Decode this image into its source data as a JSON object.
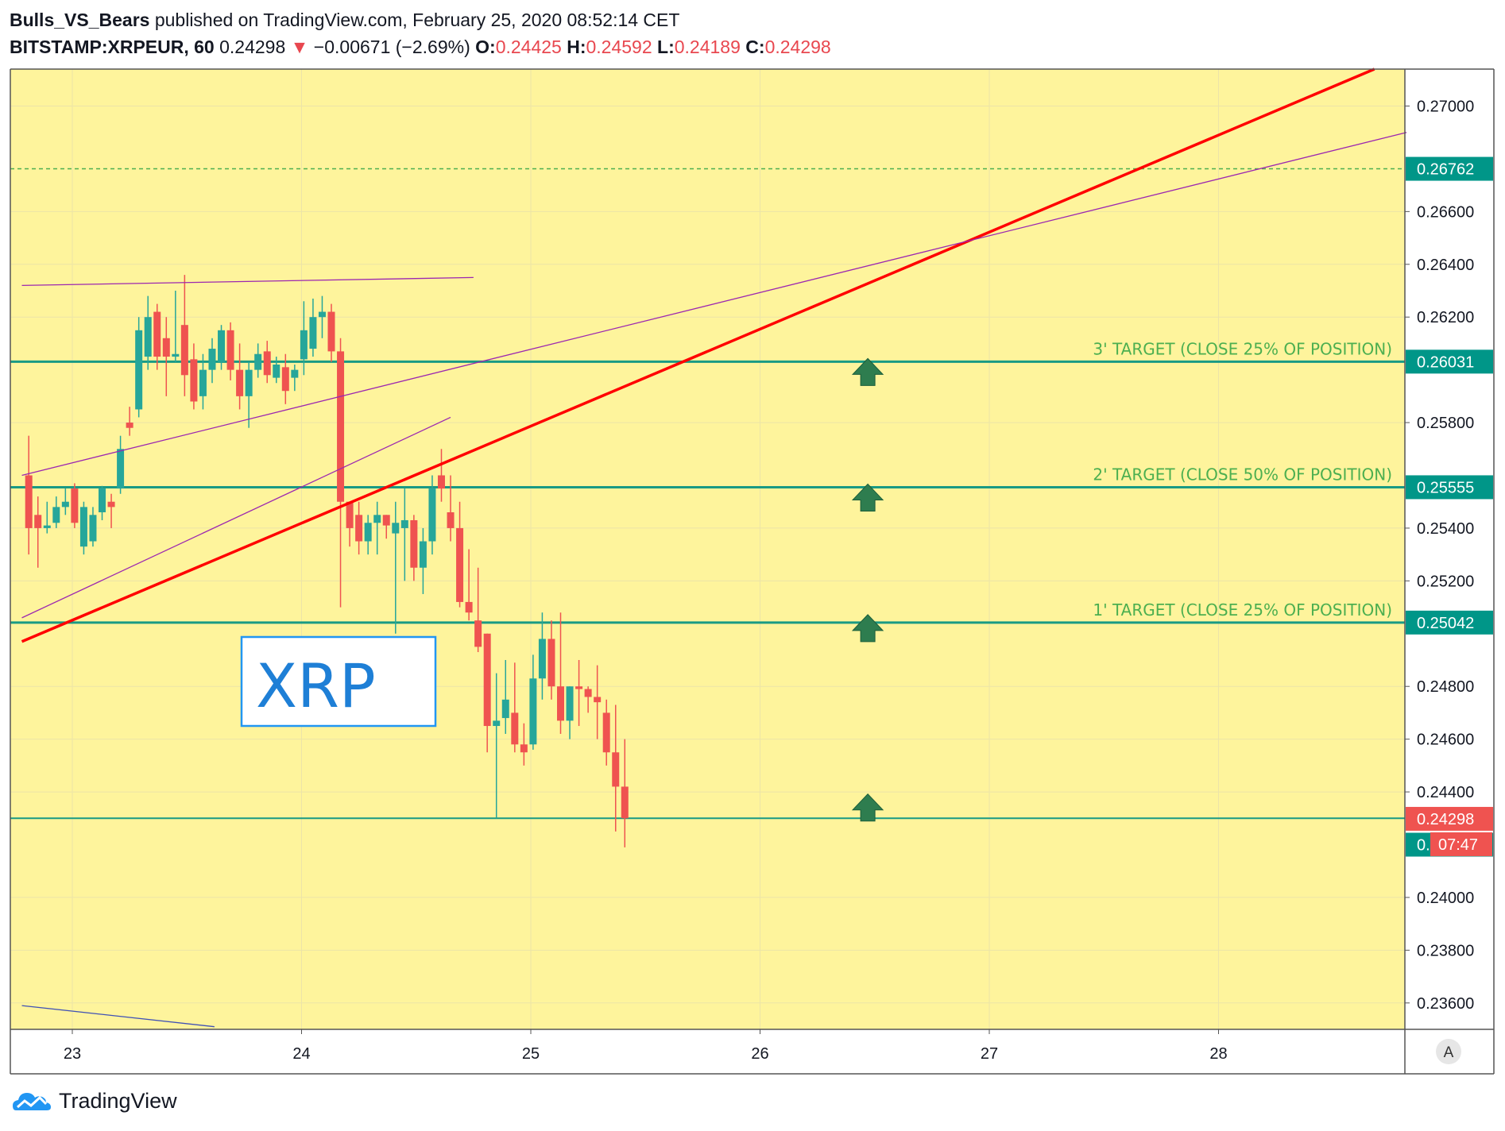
{
  "header": {
    "author": "Bulls_VS_Bears",
    "published": "published on TradingView.com, February 25, 2020 08:52:14 CET",
    "symbol": "BITSTAMP:XRPEUR, 60",
    "last": "0.24298",
    "change": "−0.00671 (−2.69%)",
    "open_label": "O:",
    "open": "0.24425",
    "high_label": "H:",
    "high": "0.24592",
    "low_label": "L:",
    "low": "0.24189",
    "close_label": "C:",
    "close": "0.24298"
  },
  "footer": {
    "brand": "TradingView"
  },
  "colors": {
    "background": "#fef49c",
    "up": "#26a69a",
    "down": "#ef5350",
    "target_line": "#199a84",
    "trend_red": "#ff0000",
    "trend_violet": "#9c27b0",
    "arrow": "#2e7d4f",
    "label_text": "#4caf50"
  },
  "chart_data": {
    "type": "candlestick",
    "x_ticks": [
      "23",
      "24",
      "25",
      "26",
      "27",
      "28"
    ],
    "y_ticks": [
      "0.27000",
      "0.26600",
      "0.26400",
      "0.26200",
      "0.25800",
      "0.25400",
      "0.25200",
      "0.24800",
      "0.24600",
      "0.24400",
      "0.24000",
      "0.23800",
      "0.23600"
    ],
    "ylim": [
      0.235,
      0.2714
    ],
    "candles": [
      {
        "t": 22.81,
        "o": 0.256,
        "h": 0.2575,
        "l": 0.253,
        "c": 0.254
      },
      {
        "t": 22.85,
        "o": 0.2545,
        "h": 0.2552,
        "l": 0.2525,
        "c": 0.254
      },
      {
        "t": 22.89,
        "o": 0.254,
        "h": 0.255,
        "l": 0.2538,
        "c": 0.2541
      },
      {
        "t": 22.93,
        "o": 0.2542,
        "h": 0.2552,
        "l": 0.254,
        "c": 0.2548
      },
      {
        "t": 22.97,
        "o": 0.2548,
        "h": 0.2555,
        "l": 0.2545,
        "c": 0.255
      },
      {
        "t": 23.01,
        "o": 0.2555,
        "h": 0.2557,
        "l": 0.254,
        "c": 0.2542
      },
      {
        "t": 23.05,
        "o": 0.2533,
        "h": 0.255,
        "l": 0.253,
        "c": 0.2548
      },
      {
        "t": 23.09,
        "o": 0.2535,
        "h": 0.2548,
        "l": 0.2533,
        "c": 0.2545
      },
      {
        "t": 23.13,
        "o": 0.2546,
        "h": 0.2556,
        "l": 0.2543,
        "c": 0.2555
      },
      {
        "t": 23.17,
        "o": 0.255,
        "h": 0.2553,
        "l": 0.254,
        "c": 0.2548
      },
      {
        "t": 23.21,
        "o": 0.2555,
        "h": 0.2575,
        "l": 0.2553,
        "c": 0.257
      },
      {
        "t": 23.25,
        "o": 0.258,
        "h": 0.2586,
        "l": 0.2575,
        "c": 0.2578
      },
      {
        "t": 23.29,
        "o": 0.2585,
        "h": 0.262,
        "l": 0.2582,
        "c": 0.2615
      },
      {
        "t": 23.33,
        "o": 0.2605,
        "h": 0.2628,
        "l": 0.26,
        "c": 0.262
      },
      {
        "t": 23.37,
        "o": 0.2622,
        "h": 0.2625,
        "l": 0.26,
        "c": 0.2605
      },
      {
        "t": 23.41,
        "o": 0.2612,
        "h": 0.262,
        "l": 0.259,
        "c": 0.2605
      },
      {
        "t": 23.45,
        "o": 0.2605,
        "h": 0.263,
        "l": 0.2603,
        "c": 0.2606
      },
      {
        "t": 23.49,
        "o": 0.2617,
        "h": 0.2636,
        "l": 0.259,
        "c": 0.2598
      },
      {
        "t": 23.53,
        "o": 0.2604,
        "h": 0.261,
        "l": 0.2585,
        "c": 0.2588
      },
      {
        "t": 23.57,
        "o": 0.259,
        "h": 0.2606,
        "l": 0.2585,
        "c": 0.26
      },
      {
        "t": 23.61,
        "o": 0.26,
        "h": 0.2612,
        "l": 0.2595,
        "c": 0.2608
      },
      {
        "t": 23.65,
        "o": 0.2603,
        "h": 0.2617,
        "l": 0.26,
        "c": 0.2615
      },
      {
        "t": 23.69,
        "o": 0.2615,
        "h": 0.2618,
        "l": 0.2596,
        "c": 0.26
      },
      {
        "t": 23.73,
        "o": 0.26,
        "h": 0.261,
        "l": 0.2585,
        "c": 0.259
      },
      {
        "t": 23.77,
        "o": 0.259,
        "h": 0.2603,
        "l": 0.2578,
        "c": 0.26
      },
      {
        "t": 23.81,
        "o": 0.26,
        "h": 0.261,
        "l": 0.2597,
        "c": 0.2606
      },
      {
        "t": 23.85,
        "o": 0.2607,
        "h": 0.2611,
        "l": 0.2595,
        "c": 0.2598
      },
      {
        "t": 23.89,
        "o": 0.2597,
        "h": 0.2605,
        "l": 0.2595,
        "c": 0.2602
      },
      {
        "t": 23.93,
        "o": 0.2601,
        "h": 0.2606,
        "l": 0.2587,
        "c": 0.2592
      },
      {
        "t": 23.97,
        "o": 0.2597,
        "h": 0.2602,
        "l": 0.2592,
        "c": 0.26
      },
      {
        "t": 24.01,
        "o": 0.2604,
        "h": 0.2626,
        "l": 0.2598,
        "c": 0.2615
      },
      {
        "t": 24.05,
        "o": 0.2608,
        "h": 0.2627,
        "l": 0.2605,
        "c": 0.262
      },
      {
        "t": 24.09,
        "o": 0.262,
        "h": 0.2628,
        "l": 0.2612,
        "c": 0.2622
      },
      {
        "t": 24.13,
        "o": 0.2622,
        "h": 0.2625,
        "l": 0.2603,
        "c": 0.2607
      },
      {
        "t": 24.17,
        "o": 0.2607,
        "h": 0.2612,
        "l": 0.251,
        "c": 0.255
      },
      {
        "t": 24.21,
        "o": 0.255,
        "h": 0.255,
        "l": 0.2533,
        "c": 0.254
      },
      {
        "t": 24.25,
        "o": 0.2545,
        "h": 0.255,
        "l": 0.253,
        "c": 0.2535
      },
      {
        "t": 24.29,
        "o": 0.2535,
        "h": 0.2545,
        "l": 0.253,
        "c": 0.2542
      },
      {
        "t": 24.33,
        "o": 0.2542,
        "h": 0.255,
        "l": 0.253,
        "c": 0.2545
      },
      {
        "t": 24.37,
        "o": 0.2545,
        "h": 0.2545,
        "l": 0.2536,
        "c": 0.2541
      },
      {
        "t": 24.41,
        "o": 0.2538,
        "h": 0.255,
        "l": 0.25,
        "c": 0.2542
      },
      {
        "t": 24.45,
        "o": 0.254,
        "h": 0.2555,
        "l": 0.252,
        "c": 0.2543
      },
      {
        "t": 24.49,
        "o": 0.2543,
        "h": 0.2545,
        "l": 0.252,
        "c": 0.2525
      },
      {
        "t": 24.53,
        "o": 0.2525,
        "h": 0.254,
        "l": 0.2515,
        "c": 0.2535
      },
      {
        "t": 24.57,
        "o": 0.2535,
        "h": 0.256,
        "l": 0.253,
        "c": 0.2555
      },
      {
        "t": 24.61,
        "o": 0.256,
        "h": 0.257,
        "l": 0.255,
        "c": 0.2555
      },
      {
        "t": 24.65,
        "o": 0.2546,
        "h": 0.256,
        "l": 0.2535,
        "c": 0.254
      },
      {
        "t": 24.69,
        "o": 0.254,
        "h": 0.255,
        "l": 0.251,
        "c": 0.2512
      },
      {
        "t": 24.73,
        "o": 0.2512,
        "h": 0.2532,
        "l": 0.2505,
        "c": 0.2508
      },
      {
        "t": 24.77,
        "o": 0.2505,
        "h": 0.2525,
        "l": 0.2493,
        "c": 0.2495
      },
      {
        "t": 24.81,
        "o": 0.25,
        "h": 0.25,
        "l": 0.2455,
        "c": 0.2465
      },
      {
        "t": 24.85,
        "o": 0.2465,
        "h": 0.2485,
        "l": 0.243,
        "c": 0.2467
      },
      {
        "t": 24.89,
        "o": 0.2468,
        "h": 0.249,
        "l": 0.2462,
        "c": 0.2475
      },
      {
        "t": 24.93,
        "o": 0.247,
        "h": 0.2489,
        "l": 0.2455,
        "c": 0.2458
      },
      {
        "t": 24.97,
        "o": 0.2458,
        "h": 0.2466,
        "l": 0.245,
        "c": 0.2455
      },
      {
        "t": 25.01,
        "o": 0.2458,
        "h": 0.2492,
        "l": 0.2456,
        "c": 0.2483
      },
      {
        "t": 25.05,
        "o": 0.2483,
        "h": 0.2508,
        "l": 0.2475,
        "c": 0.2498
      },
      {
        "t": 25.09,
        "o": 0.2498,
        "h": 0.2505,
        "l": 0.2475,
        "c": 0.248
      },
      {
        "t": 25.13,
        "o": 0.248,
        "h": 0.2508,
        "l": 0.2462,
        "c": 0.2467
      },
      {
        "t": 25.17,
        "o": 0.2467,
        "h": 0.248,
        "l": 0.246,
        "c": 0.248
      },
      {
        "t": 25.21,
        "o": 0.248,
        "h": 0.249,
        "l": 0.2465,
        "c": 0.2479
      },
      {
        "t": 25.25,
        "o": 0.2479,
        "h": 0.248,
        "l": 0.247,
        "c": 0.2476
      },
      {
        "t": 25.29,
        "o": 0.2476,
        "h": 0.2488,
        "l": 0.246,
        "c": 0.2474
      },
      {
        "t": 25.33,
        "o": 0.247,
        "h": 0.2475,
        "l": 0.245,
        "c": 0.2455
      },
      {
        "t": 25.37,
        "o": 0.2455,
        "h": 0.2473,
        "l": 0.2425,
        "c": 0.2442
      },
      {
        "t": 25.41,
        "o": 0.2442,
        "h": 0.246,
        "l": 0.2419,
        "c": 0.243
      }
    ],
    "trend_lines": [
      {
        "kind": "red",
        "t1": 22.78,
        "p1": 0.2497,
        "t2": 28.68,
        "p2": 0.2714
      },
      {
        "kind": "violet",
        "t1": 22.78,
        "p1": 0.256,
        "t2": 28.82,
        "p2": 0.269
      },
      {
        "kind": "violet",
        "t1": 22.78,
        "p1": 0.2506,
        "t2": 24.65,
        "p2": 0.2582
      },
      {
        "kind": "violet",
        "t1": 22.78,
        "p1": 0.2632,
        "t2": 24.75,
        "p2": 0.2635
      },
      {
        "kind": "blue",
        "t1": 22.78,
        "p1": 0.2359,
        "t2": 23.62,
        "p2": 0.2351
      }
    ],
    "h_lines": [
      {
        "price": 0.26031,
        "label": "3' TARGET (CLOSE 25% OF POSITION)"
      },
      {
        "price": 0.25555,
        "label": "2' TARGET (CLOSE 50% OF POSITION)"
      },
      {
        "price": 0.25042,
        "label": "1' TARGET (CLOSE 25% OF POSITION)"
      },
      {
        "price": 0.243,
        "label": ""
      }
    ],
    "dashed_level": 0.26762,
    "arrows": [
      {
        "t": 26.47,
        "p": 0.26031
      },
      {
        "t": 26.47,
        "p": 0.25555
      },
      {
        "t": 26.47,
        "p": 0.2506
      },
      {
        "t": 26.47,
        "p": 0.2438
      }
    ],
    "annotation": {
      "text": "XRP"
    },
    "price_labels": [
      {
        "text": "0.26762",
        "price": 0.26762,
        "color": "#009688"
      },
      {
        "text": "0.26031",
        "price": 0.26031,
        "color": "#009688"
      },
      {
        "text": "0.25555",
        "price": 0.25555,
        "color": "#009688"
      },
      {
        "text": "0.25042",
        "price": 0.25042,
        "color": "#009688"
      },
      {
        "text": "0.24298",
        "price": 0.24298,
        "color": "#ef5350"
      },
      {
        "text": "0.24300",
        "price": 0.242,
        "color": "#009688"
      }
    ],
    "countdown": "07:47",
    "axis_button": "A"
  }
}
